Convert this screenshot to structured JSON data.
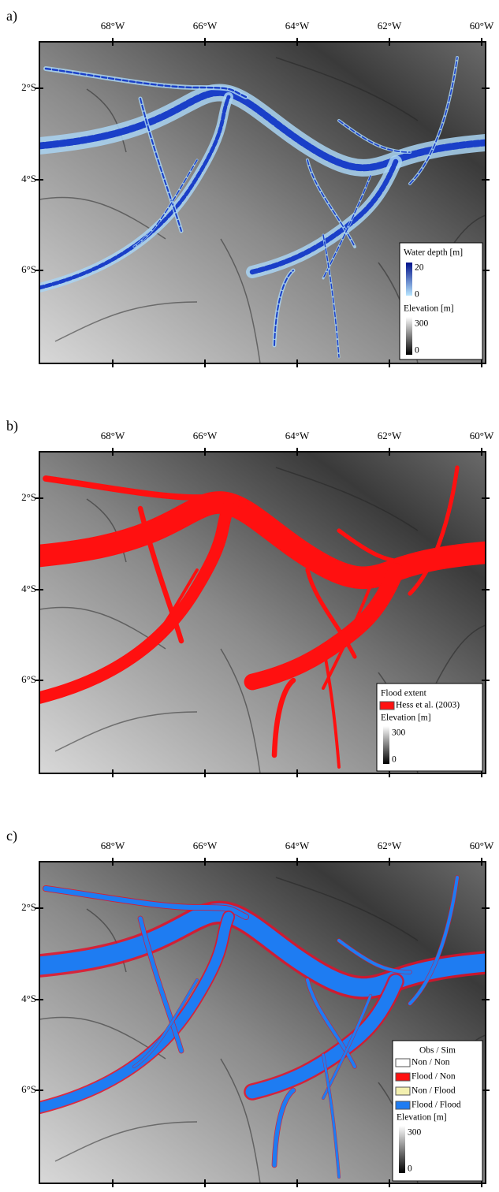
{
  "lon_labels": [
    "68°W",
    "66°W",
    "64°W",
    "62°W",
    "60°W"
  ],
  "lat_labels": [
    "2°S",
    "4°S",
    "6°S"
  ],
  "elevation_legend": {
    "title": "Elevation [m]",
    "max": 300,
    "min": 0
  },
  "panels": [
    {
      "label": "a)",
      "legend": {
        "title": "Water depth [m]",
        "max": 20,
        "min": 0
      }
    },
    {
      "label": "b)",
      "legend": {
        "title": "Flood extent",
        "entries": [
          "Hess et al. (2003)"
        ]
      }
    },
    {
      "label": "c)",
      "legend": {
        "title": "Obs / Sim",
        "entries": [
          "Non / Non",
          "Flood / Non",
          "Non / Flood",
          "Flood / Flood"
        ]
      }
    }
  ]
}
